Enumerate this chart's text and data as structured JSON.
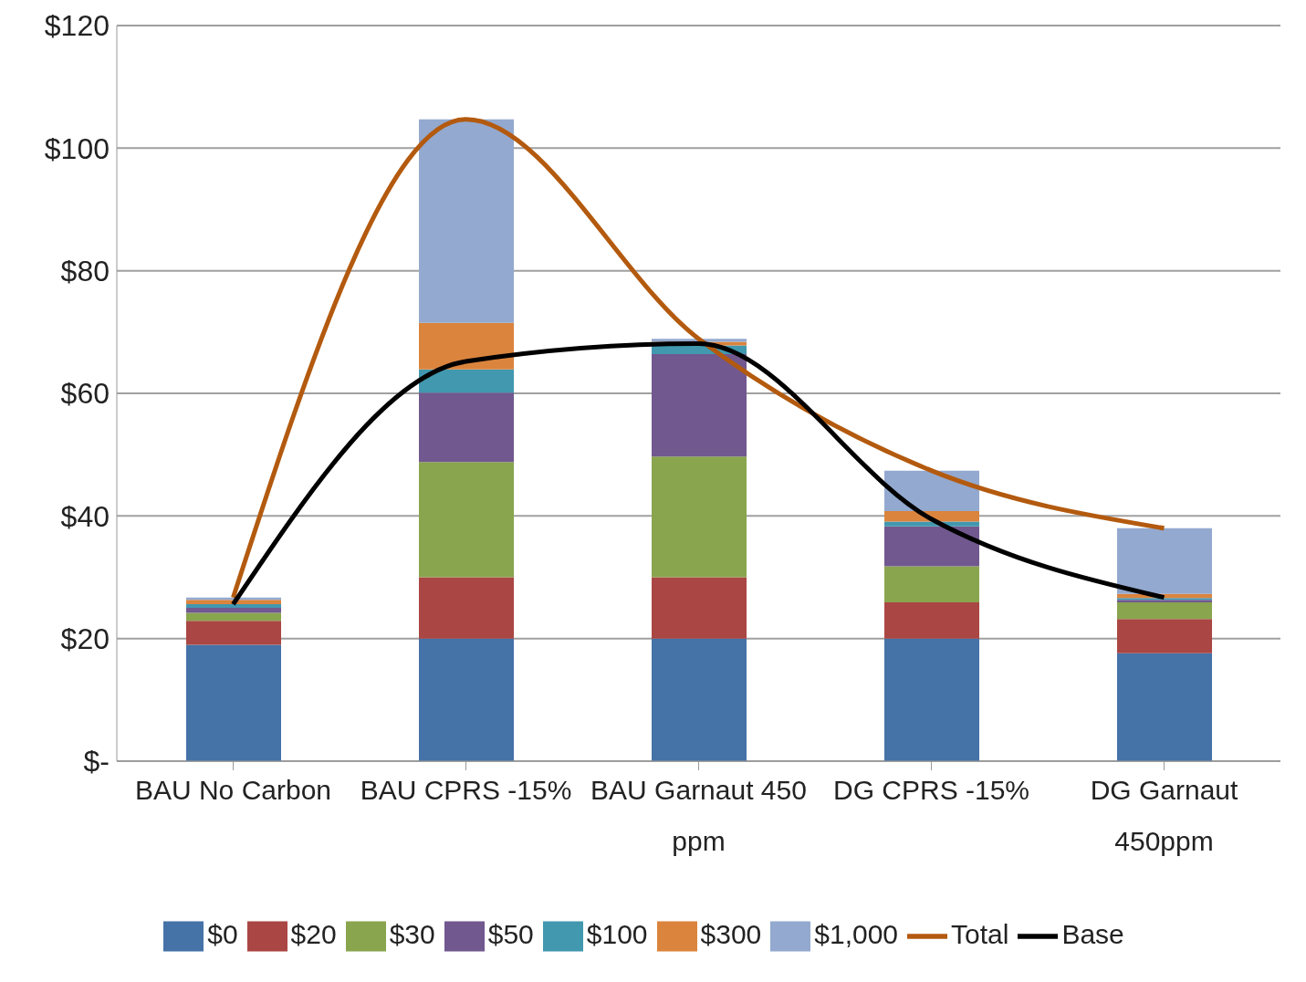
{
  "chart_data": {
    "type": "bar",
    "stacked": true,
    "categories": [
      "BAU No Carbon",
      "BAU CPRS -15%",
      "BAU Garnaut 450 ppm",
      "DG CPRS -15%",
      "DG Garnaut 450ppm"
    ],
    "series": [
      {
        "name": "$0",
        "color": "#4572a7",
        "values": [
          19,
          20,
          20,
          20,
          17.6
        ]
      },
      {
        "name": "$20",
        "color": "#aa4643",
        "values": [
          3.9,
          10,
          10,
          5.9,
          5.6
        ]
      },
      {
        "name": "$30",
        "color": "#89a54e",
        "values": [
          1.3,
          18.8,
          19.7,
          5.9,
          2.7
        ]
      },
      {
        "name": "$50",
        "color": "#71588f",
        "values": [
          0.8,
          11.3,
          16.7,
          6.5,
          0.4
        ]
      },
      {
        "name": "$100",
        "color": "#4198af",
        "values": [
          0.6,
          3.8,
          1.4,
          0.8,
          0.3
        ]
      },
      {
        "name": "$300",
        "color": "#db843d",
        "values": [
          0.7,
          7.6,
          0.6,
          1.7,
          0.7
        ]
      },
      {
        "name": "$1,000",
        "color": "#93a9cf",
        "values": [
          0.4,
          33.2,
          0.5,
          6.6,
          10.7
        ]
      },
      {
        "name": "Total",
        "type": "line",
        "color": "#b35a0f",
        "values": [
          26.7,
          104.7,
          68.9,
          47.4,
          38
        ]
      },
      {
        "name": "Base",
        "type": "line",
        "color": "#000000",
        "values": [
          25.6,
          65.2,
          68.1,
          39.5,
          26.7
        ]
      }
    ],
    "ylim": [
      0,
      120
    ],
    "yticks": [
      {
        "value": 0,
        "label": "$-"
      },
      {
        "value": 20,
        "label": "$20"
      },
      {
        "value": 40,
        "label": "$40"
      },
      {
        "value": 60,
        "label": "$60"
      },
      {
        "value": 80,
        "label": "$80"
      },
      {
        "value": 100,
        "label": "$100"
      },
      {
        "value": 120,
        "label": "$120"
      }
    ],
    "grid": "y",
    "legend": "bottom",
    "marker": "none",
    "line_style": "solid"
  }
}
